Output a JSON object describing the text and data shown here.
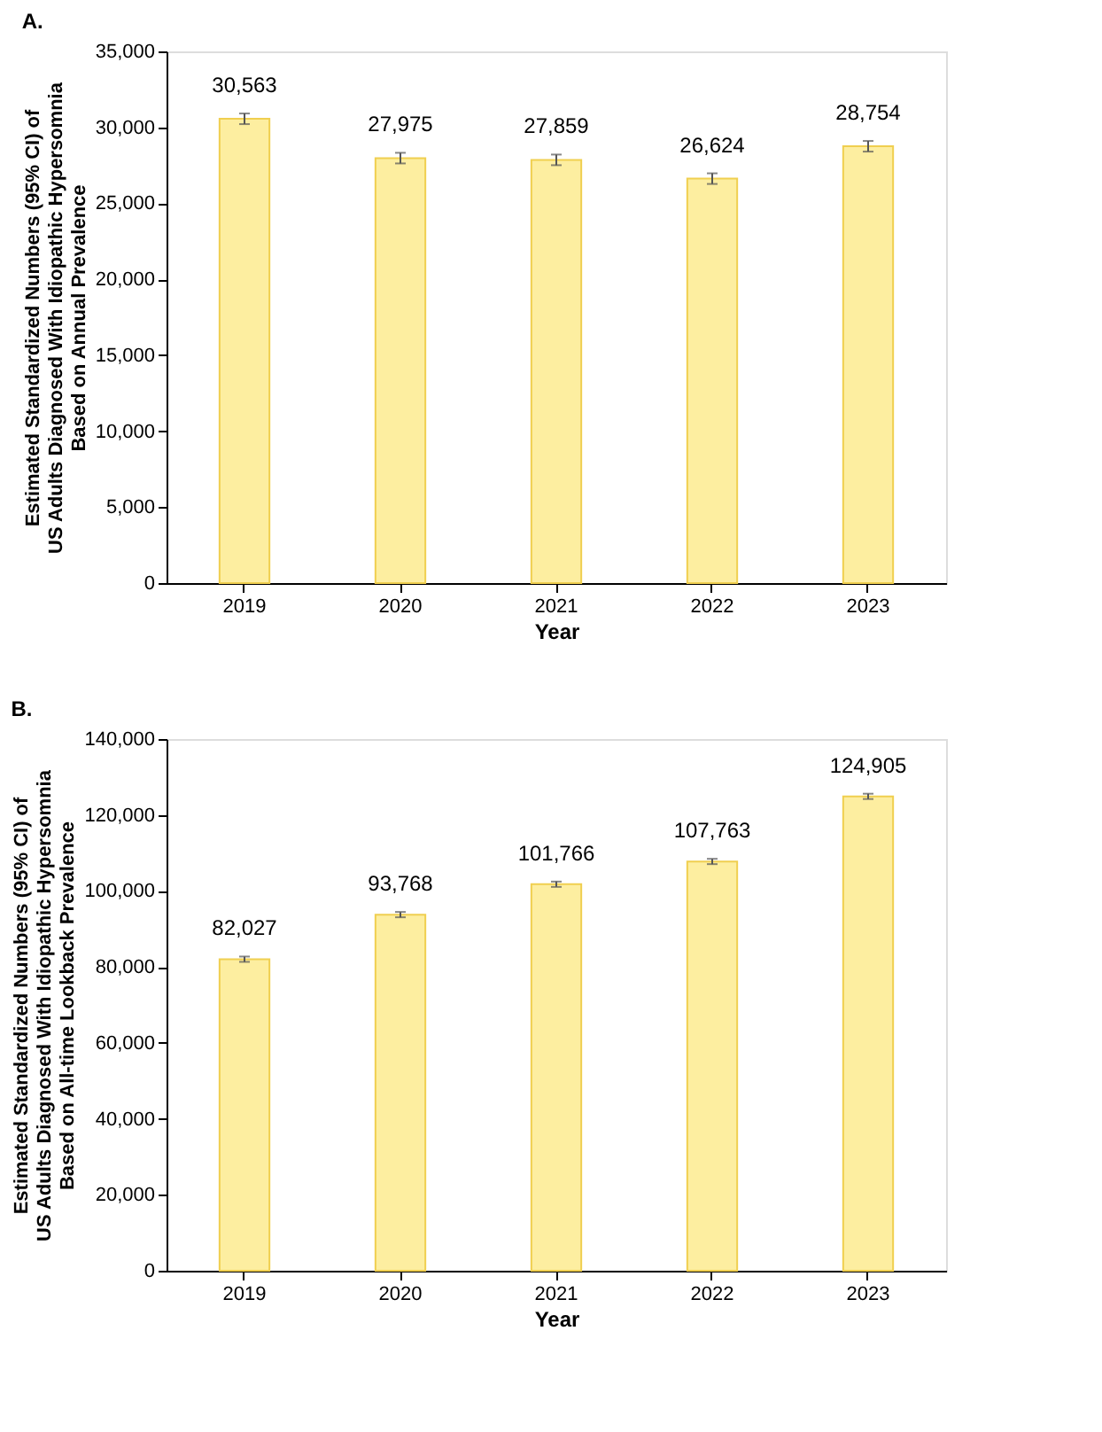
{
  "chart_data": [
    {
      "type": "bar",
      "title": "A.",
      "xlabel": "Year",
      "ylabel": "Estimated Standardized Numbers (95% CI) of\nUS Adults Diagnosed With Idiopathic Hypersomnia\nBased on Annual Prevalence",
      "categories": [
        "2019",
        "2020",
        "2021",
        "2022",
        "2023"
      ],
      "values": [
        30563,
        27975,
        27859,
        26624,
        28754
      ],
      "value_labels": [
        "30,563",
        "27,975",
        "27,859",
        "26,624",
        "28,754"
      ],
      "errors": [
        350,
        350,
        350,
        350,
        350
      ],
      "color": "#fdeea0",
      "ylim": [
        0,
        35000
      ],
      "yticks": [
        0,
        {
          "value": 5000,
          "label": "5,000"
        },
        {
          "value": 10000,
          "label": "10,000"
        },
        {
          "value": 15000,
          "label": "15,000"
        },
        {
          "value": 20000,
          "label": "20,000"
        },
        {
          "value": 25000,
          "label": "25,000"
        },
        {
          "value": 30000,
          "label": "30,000"
        },
        {
          "value": 35000,
          "label": "35,000"
        }
      ]
    },
    {
      "type": "bar",
      "title": "B.",
      "xlabel": "Year",
      "ylabel": "Estimated Standardized Numbers (95% CI) of\nUS Adults Diagnosed With Idiopathic Hypersomnia\nBased on All-time Lookback Prevalence",
      "categories": [
        "2019",
        "2020",
        "2021",
        "2022",
        "2023"
      ],
      "values": [
        82027,
        93768,
        101766,
        107763,
        124905
      ],
      "value_labels": [
        "82,027",
        "93,768",
        "101,766",
        "107,763",
        "124,905"
      ],
      "errors": [
        700,
        700,
        700,
        700,
        700
      ],
      "color": "#fdeea0",
      "ylim": [
        0,
        140000
      ],
      "yticks": [
        0,
        {
          "value": 20000,
          "label": "20,000"
        },
        {
          "value": 40000,
          "label": "40,000"
        },
        {
          "value": 60000,
          "label": "60,000"
        },
        {
          "value": 80000,
          "label": "80,000"
        },
        {
          "value": 100000,
          "label": "100,000"
        },
        {
          "value": 120000,
          "label": "120,000"
        },
        {
          "value": 140000,
          "label": "140,000"
        }
      ]
    }
  ]
}
